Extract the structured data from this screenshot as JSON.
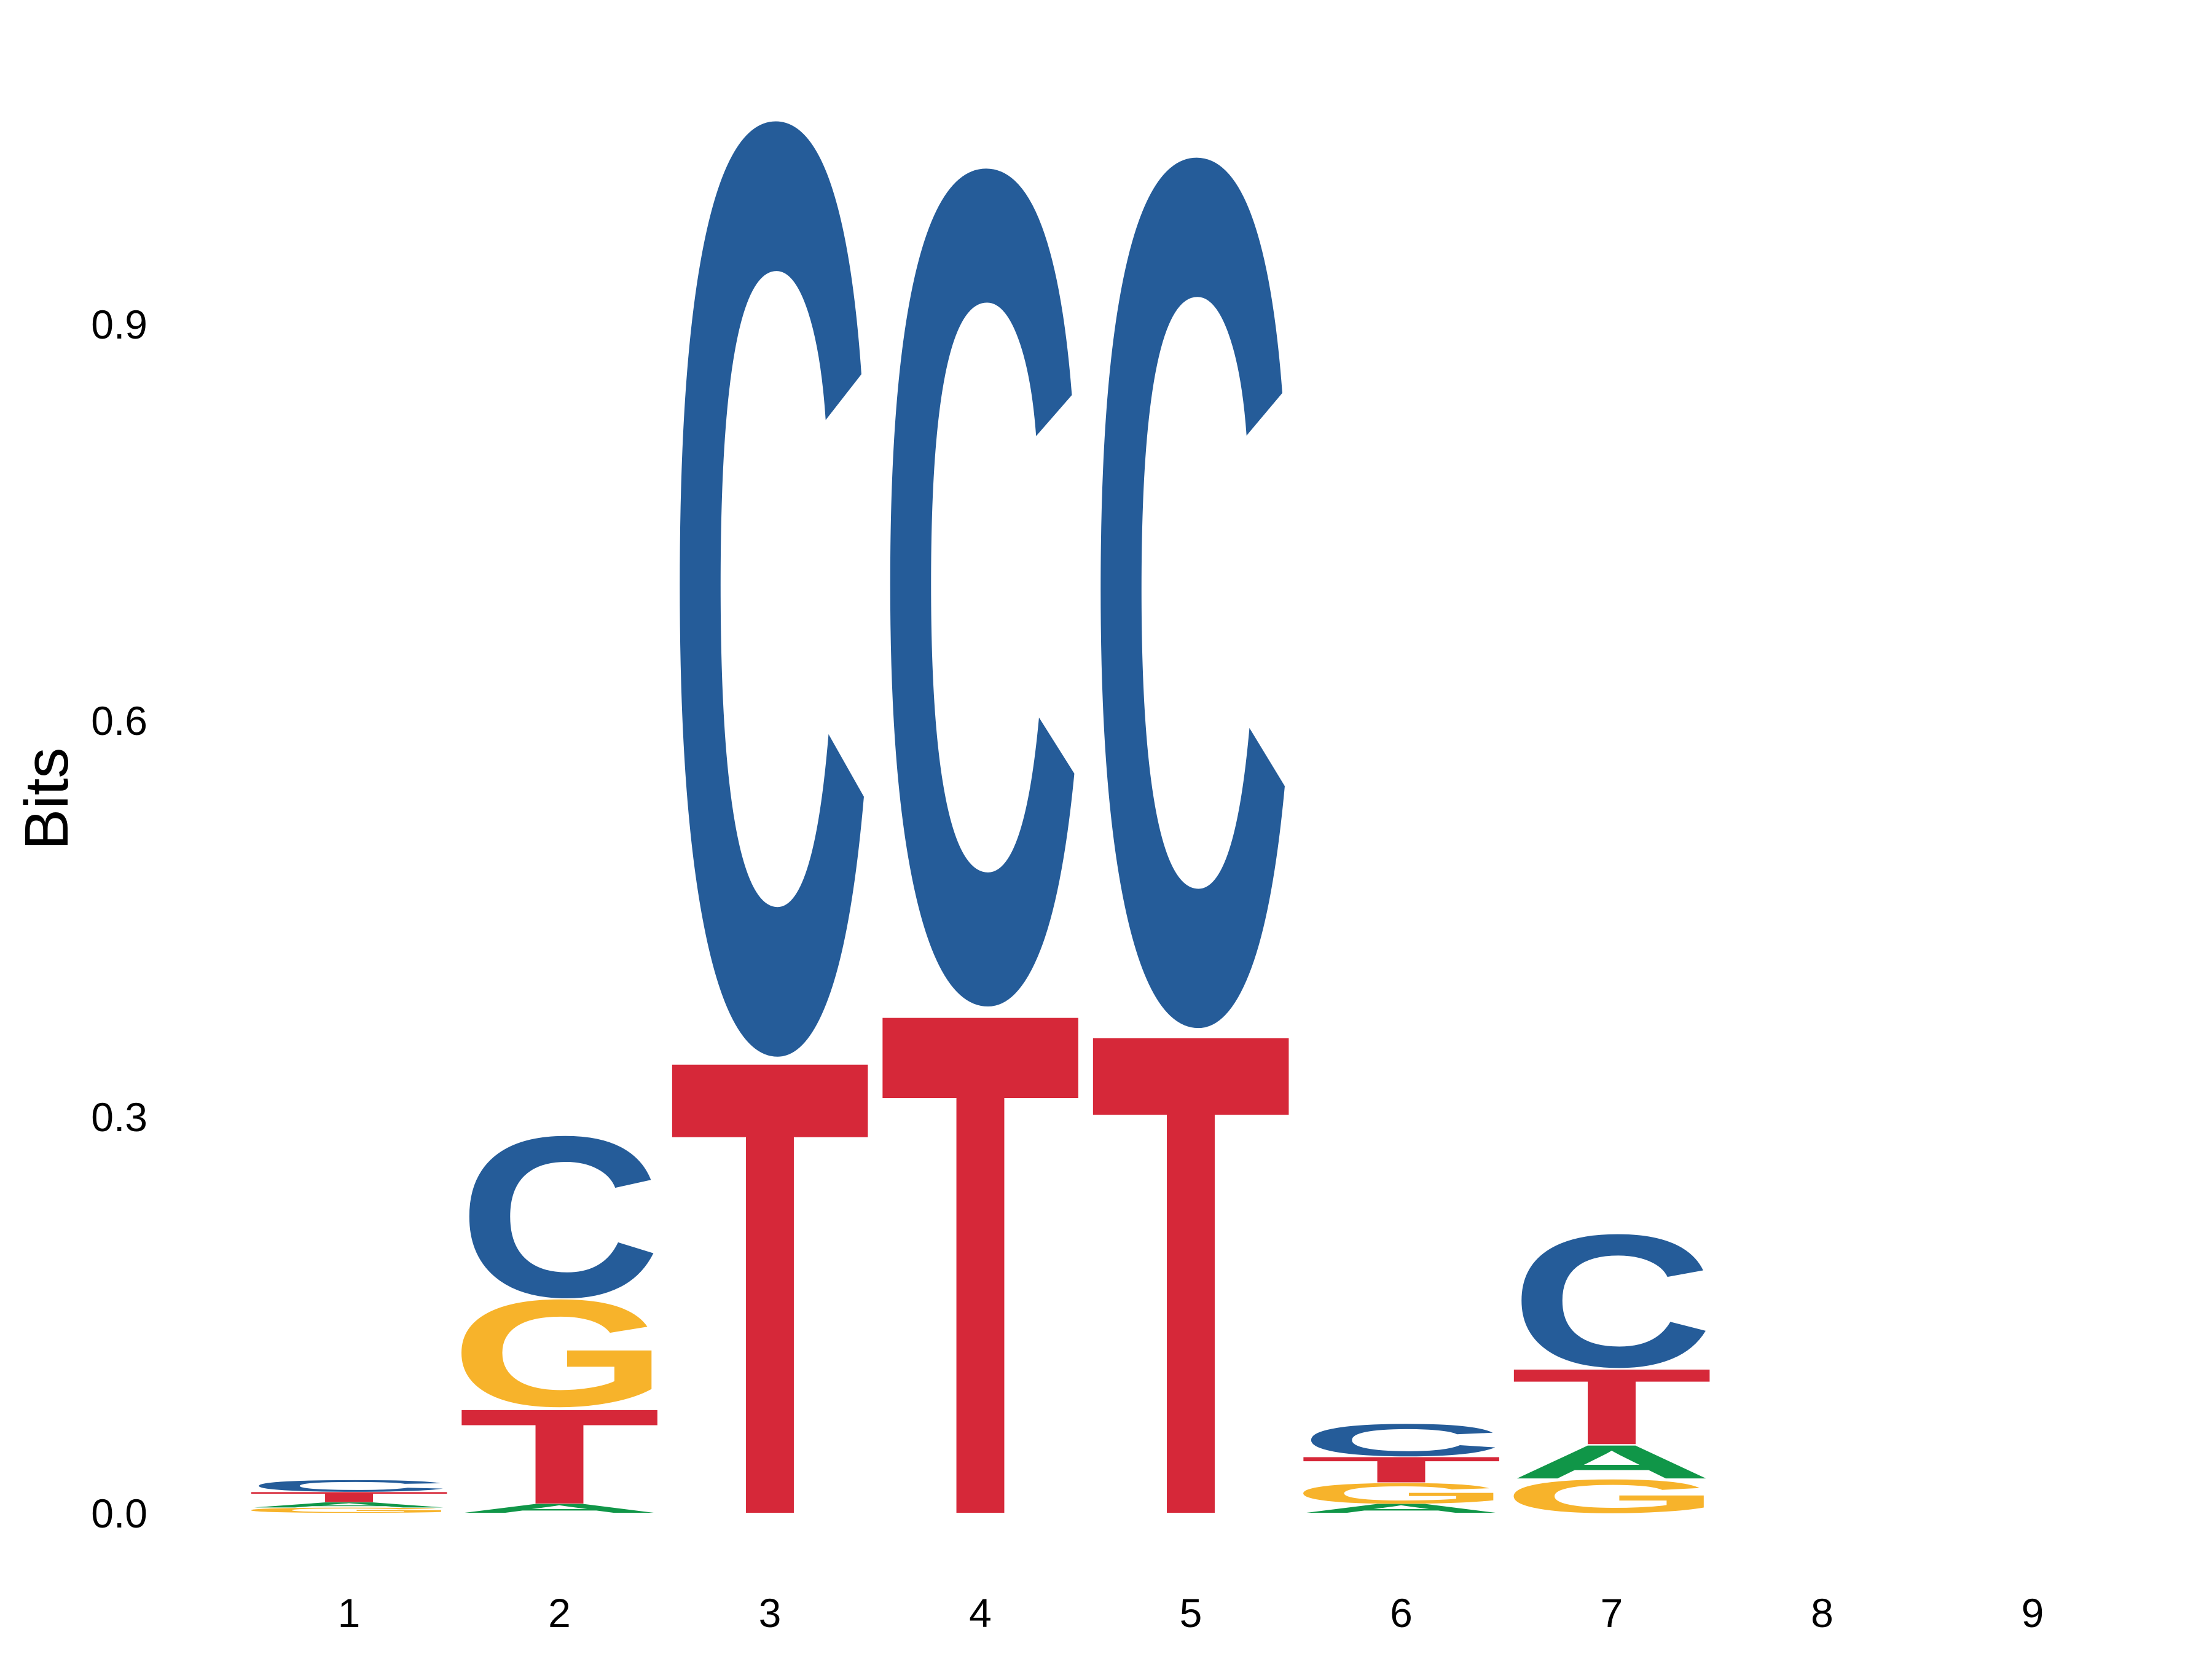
{
  "chart_data": {
    "type": "sequence-logo",
    "title": "",
    "xlabel": "",
    "ylabel": "Bits",
    "ylim": [
      -0.02,
      1.15
    ],
    "y_ticks": [
      "0.0",
      "0.3",
      "0.6",
      "0.9"
    ],
    "grid": false,
    "legend": "none",
    "positions": [
      "1",
      "2",
      "3",
      "4",
      "5",
      "6",
      "7",
      "8",
      "9"
    ],
    "colors": {
      "A": "#109648",
      "C": "#255C99",
      "G": "#F7B32B",
      "T": "#D62839"
    },
    "stacks": [
      [
        {
          "base": "G",
          "bits": 0.004
        },
        {
          "base": "A",
          "bits": 0.004
        },
        {
          "base": "T",
          "bits": 0.008
        },
        {
          "base": "C",
          "bits": 0.009
        }
      ],
      [
        {
          "base": "A",
          "bits": 0.007
        },
        {
          "base": "T",
          "bits": 0.074
        },
        {
          "base": "G",
          "bits": 0.083
        },
        {
          "base": "C",
          "bits": 0.125
        }
      ],
      [
        {
          "base": "T",
          "bits": 0.355
        },
        {
          "base": "C",
          "bits": 0.72
        }
      ],
      [
        {
          "base": "T",
          "bits": 0.392
        },
        {
          "base": "C",
          "bits": 0.645
        }
      ],
      [
        {
          "base": "T",
          "bits": 0.376
        },
        {
          "base": "C",
          "bits": 0.67
        }
      ],
      [
        {
          "base": "A",
          "bits": 0.007
        },
        {
          "base": "G",
          "bits": 0.016
        },
        {
          "base": "T",
          "bits": 0.02
        },
        {
          "base": "C",
          "bits": 0.025
        }
      ],
      [
        {
          "base": "G",
          "bits": 0.026
        },
        {
          "base": "A",
          "bits": 0.026
        },
        {
          "base": "T",
          "bits": 0.059
        },
        {
          "base": "C",
          "bits": 0.103
        }
      ],
      [],
      []
    ]
  }
}
